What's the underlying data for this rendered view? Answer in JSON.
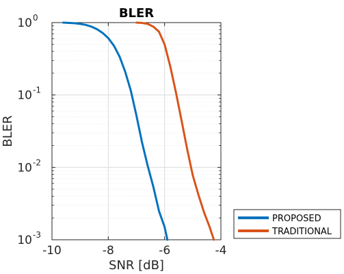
{
  "chart_data": {
    "type": "line",
    "title": "BLER",
    "xlabel": "SNR [dB]",
    "ylabel": "BLER",
    "xlim": [
      -10,
      -4
    ],
    "ylim": [
      0.001,
      1
    ],
    "yscale": "log",
    "grid": true,
    "minor_grid": true,
    "legend_position": "outside-bottom-right",
    "x_ticks": [
      -10,
      -8,
      -6,
      -4
    ],
    "x_tick_labels": [
      "-10",
      "-8",
      "-6",
      "-4"
    ],
    "y_ticks": [
      1,
      0.1,
      0.01,
      0.001
    ],
    "y_tick_base": "10",
    "y_tick_exponents": [
      "0",
      "-1",
      "-2",
      "-3"
    ],
    "series": [
      {
        "name": "PROPOSED",
        "color": "#0072BD",
        "x": [
          -9.6,
          -9.2,
          -9.0,
          -8.8,
          -8.6,
          -8.4,
          -8.2,
          -8.0,
          -7.8,
          -7.6,
          -7.4,
          -7.2,
          -7.0,
          -6.8,
          -6.6,
          -6.4,
          -6.2,
          -6.0,
          -5.9
        ],
        "y": [
          1.0,
          0.98,
          0.96,
          0.93,
          0.88,
          0.81,
          0.72,
          0.61,
          0.48,
          0.34,
          0.21,
          0.115,
          0.052,
          0.022,
          0.0105,
          0.0054,
          0.0025,
          0.0015,
          0.001
        ]
      },
      {
        "name": "TRADITIONAL",
        "color": "#D95319",
        "x": [
          -7.0,
          -6.8,
          -6.6,
          -6.4,
          -6.2,
          -6.0,
          -5.8,
          -5.6,
          -5.4,
          -5.2,
          -5.0,
          -4.8,
          -4.6,
          -4.4,
          -4.25
        ],
        "y": [
          1.0,
          0.99,
          0.96,
          0.88,
          0.75,
          0.5,
          0.25,
          0.11,
          0.045,
          0.018,
          0.0078,
          0.0042,
          0.0024,
          0.0015,
          0.001
        ]
      }
    ]
  }
}
